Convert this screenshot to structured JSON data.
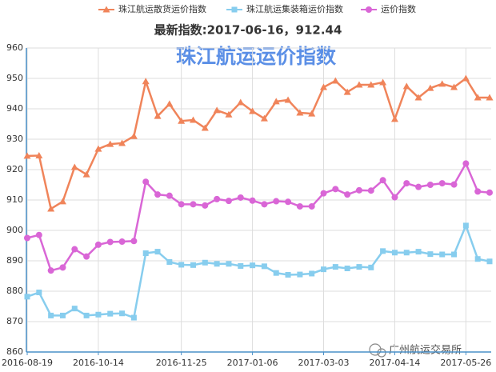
{
  "chart_data": {
    "type": "line",
    "subtitle": "最新指数:2017-06-16，912.44",
    "title": "珠江航运运价指数",
    "categories": [
      "2016-08-19",
      null,
      null,
      null,
      null,
      null,
      "2016-10-14",
      null,
      null,
      null,
      null,
      null,
      null,
      "2016-11-25",
      null,
      null,
      null,
      null,
      null,
      "2017-01-06",
      null,
      null,
      null,
      null,
      null,
      "2017-03-03",
      null,
      null,
      null,
      null,
      null,
      "2017-04-14",
      null,
      null,
      null,
      null,
      null,
      "2017-05-26",
      null,
      null
    ],
    "series": [
      {
        "name": "珠江航运散货运价指数",
        "color": "#f0845a",
        "marker": "triangle",
        "values": [
          924.5,
          924.6,
          907.1,
          909.5,
          920.8,
          918.4,
          926.8,
          928.4,
          928.7,
          931,
          949,
          937.6,
          941.6,
          936,
          936.3,
          933.7,
          939.5,
          938.1,
          942.1,
          939.2,
          936.8,
          942.4,
          942.9,
          938.7,
          938.4,
          947.1,
          949.2,
          945.5,
          947.9,
          947.9,
          948.7,
          936.6,
          947.4,
          943.7,
          946.8,
          948.2,
          947.1,
          950,
          943.7,
          943.7
        ]
      },
      {
        "name": "珠江航运集装箱运价指数",
        "color": "#87cdee",
        "marker": "square",
        "values": [
          878.2,
          879.6,
          872,
          872,
          874.3,
          872,
          872.3,
          872.6,
          872.7,
          871.3,
          892.5,
          893,
          889.6,
          888.7,
          888.6,
          889.4,
          889,
          889,
          888.3,
          888.5,
          888.2,
          886,
          885.4,
          885.5,
          885.8,
          887.2,
          888,
          887.5,
          888,
          887.8,
          893.2,
          892.7,
          892.7,
          893,
          892.2,
          892.1,
          892.1,
          901.6,
          890.6,
          889.8
        ]
      },
      {
        "name": "运价指数",
        "color": "#d966d6",
        "marker": "circle",
        "values": [
          897.5,
          898.5,
          886.8,
          887.8,
          893.8,
          891.4,
          895.3,
          896.2,
          896.3,
          896.5,
          916,
          911.8,
          911.4,
          908.6,
          908.6,
          908.2,
          910.3,
          909.7,
          910.8,
          909.8,
          908.6,
          909.6,
          909.4,
          907.9,
          907.9,
          912.2,
          913.6,
          911.8,
          913.2,
          913.1,
          916.5,
          910.9,
          915.5,
          914.3,
          915,
          915.5,
          915.1,
          922,
          912.8,
          912.44
        ]
      }
    ],
    "ylim": [
      860,
      960
    ],
    "yticks": [
      860,
      870,
      880,
      890,
      900,
      910,
      920,
      930,
      940,
      950,
      960
    ],
    "grid": true,
    "legend": "top",
    "watermark": "广州航运交易所"
  }
}
